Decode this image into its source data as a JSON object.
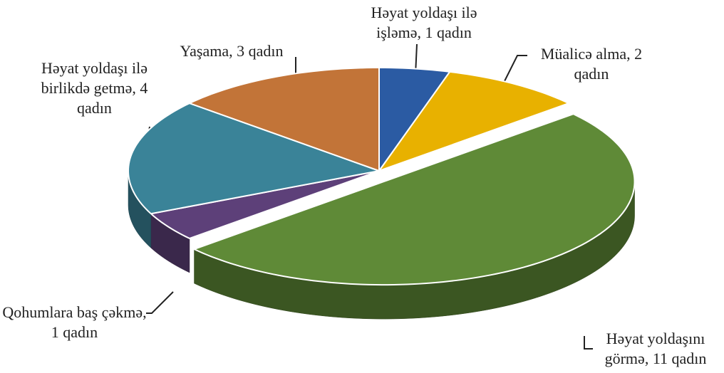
{
  "chart_data": {
    "type": "pie",
    "values": [
      1,
      2,
      11,
      1,
      4,
      3
    ],
    "value_labels": [
      "Həyat yoldaşı ilə işləmə, 1 qadın",
      "Müalicə alma, 2 qadın",
      "Həyat yoldaşını görmə, 11 qadın",
      "Qohumlara baş çəkmə, 1 qadın",
      "Həyat yoldaşı ilə birlikdə getmə, 4 qadın",
      "Yaşama, 3 qadın"
    ],
    "colors": [
      "#2b5ba3",
      "#e8b100",
      "#5f8a37",
      "#5d4079",
      "#3a8398",
      "#c27438"
    ],
    "exploded": [
      2
    ]
  }
}
